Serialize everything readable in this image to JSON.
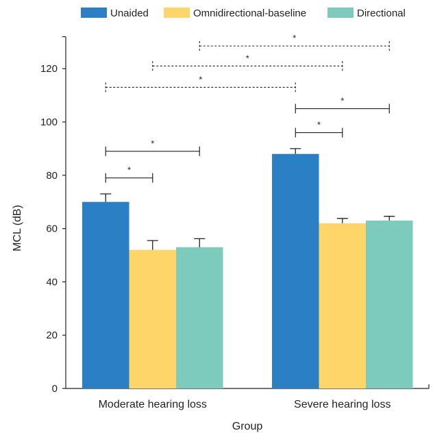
{
  "chart_data": {
    "type": "bar",
    "categories": [
      "Moderate hearing loss",
      "Severe hearing loss"
    ],
    "series": [
      {
        "name": "Unaided",
        "color": "#2b7fc4",
        "values": [
          70,
          88
        ],
        "errors": [
          3,
          2
        ]
      },
      {
        "name": "Omnidirectional-baseline",
        "color": "#fdd568",
        "values": [
          52,
          62
        ],
        "errors": [
          3.5,
          1.8
        ]
      },
      {
        "name": "Directional",
        "color": "#7dcbbd",
        "values": [
          53,
          63
        ],
        "errors": [
          3.2,
          1.6
        ]
      }
    ],
    "xlabel": "Group",
    "ylabel": "MCL (dB)",
    "ylim": [
      0,
      132
    ],
    "yticks": [
      0,
      20,
      40,
      60,
      80,
      100,
      120
    ],
    "legend_position": "top",
    "significance": [
      {
        "from": [
          0,
          0
        ],
        "to": [
          0,
          1
        ],
        "level": 79,
        "style": "solid",
        "label": "*"
      },
      {
        "from": [
          0,
          0
        ],
        "to": [
          0,
          2
        ],
        "level": 89,
        "style": "solid",
        "label": "*"
      },
      {
        "from": [
          1,
          0
        ],
        "to": [
          1,
          1
        ],
        "level": 96,
        "style": "solid",
        "label": "*"
      },
      {
        "from": [
          1,
          0
        ],
        "to": [
          1,
          2
        ],
        "level": 105,
        "style": "solid",
        "label": "*"
      },
      {
        "from": [
          0,
          0
        ],
        "to": [
          1,
          0
        ],
        "level": 113,
        "style": "dashed",
        "label": "*"
      },
      {
        "from": [
          0,
          1
        ],
        "to": [
          1,
          1
        ],
        "level": 121,
        "style": "dashed",
        "label": "*"
      },
      {
        "from": [
          0,
          2
        ],
        "to": [
          1,
          2
        ],
        "level": 128.5,
        "style": "dashed",
        "label": "*"
      }
    ]
  }
}
